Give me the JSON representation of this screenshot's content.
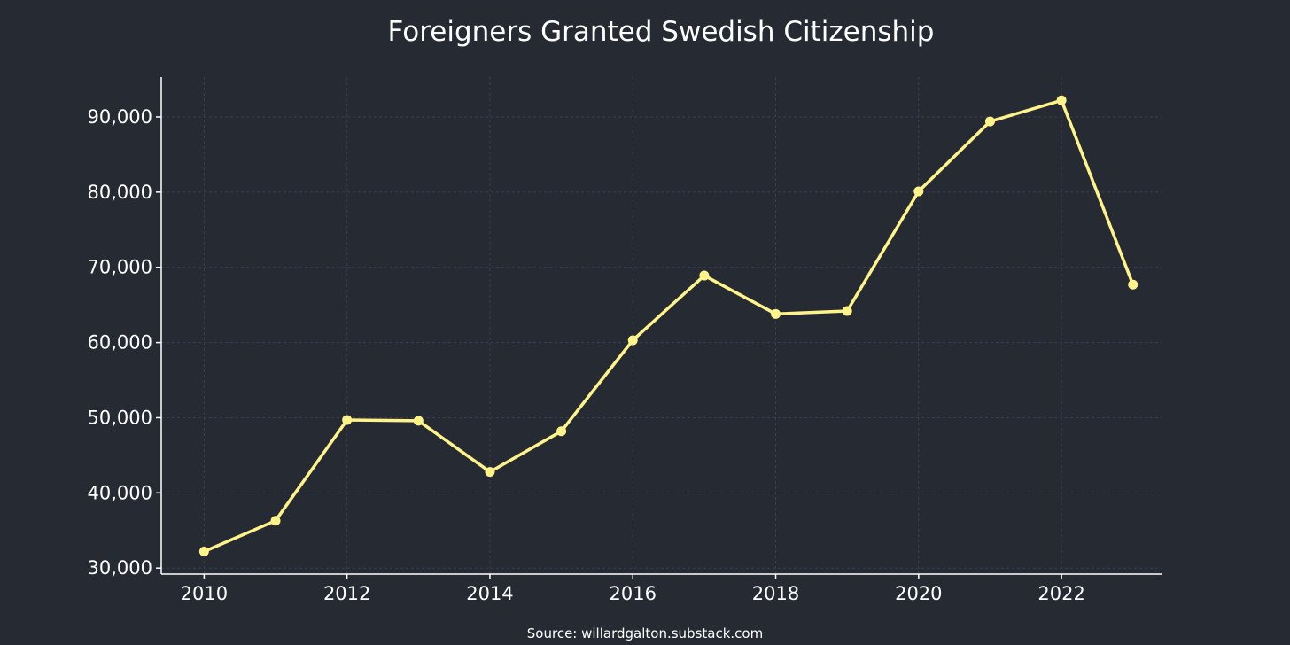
{
  "chart_data": {
    "type": "line",
    "title": "Foreigners Granted Swedish Citizenship",
    "xlabel": "",
    "ylabel": "",
    "x": [
      2010,
      2011,
      2012,
      2013,
      2014,
      2015,
      2016,
      2017,
      2018,
      2019,
      2020,
      2021,
      2022,
      2023
    ],
    "series": [
      {
        "values": [
          32200,
          36300,
          49700,
          49600,
          42800,
          48200,
          60300,
          68900,
          63800,
          64200,
          80100,
          89400,
          92200,
          67700
        ]
      }
    ],
    "xlim": [
      2009.4,
      2023.4
    ],
    "ylim": [
      29200,
      95300
    ],
    "x_ticks": [
      2010,
      2012,
      2014,
      2016,
      2018,
      2020,
      2022
    ],
    "x_tick_labels": [
      "2010",
      "2012",
      "2014",
      "2016",
      "2018",
      "2020",
      "2022"
    ],
    "y_ticks": [
      30000,
      40000,
      50000,
      60000,
      70000,
      80000,
      90000
    ],
    "y_tick_labels": [
      "30,000",
      "40,000",
      "50,000",
      "60,000",
      "70,000",
      "80,000",
      "90,000"
    ],
    "grid": true,
    "legend": "none",
    "source": "Source: willardgalton.substack.com",
    "colors": {
      "background": "#252a33",
      "line": "#fff38a",
      "text": "#ffffff",
      "grid": "#3a4050"
    }
  }
}
